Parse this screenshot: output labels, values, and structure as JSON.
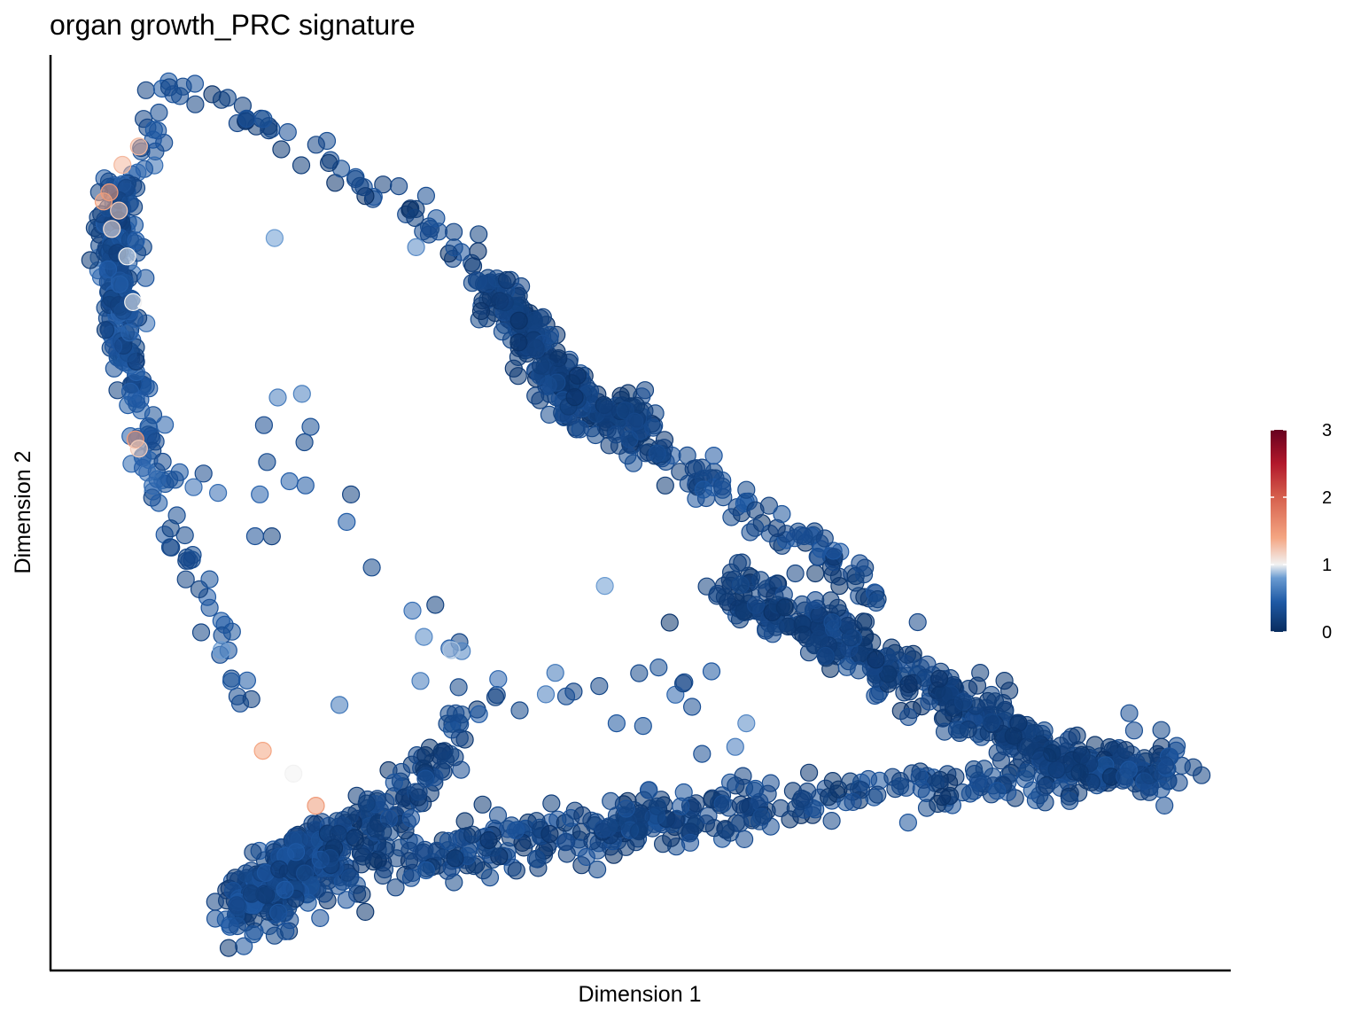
{
  "chart_data": {
    "type": "scatter",
    "title": "organ growth_PRC signature",
    "xlabel": "Dimension 1",
    "ylabel": "Dimension 2",
    "xlim": [
      0,
      100
    ],
    "ylim": [
      0,
      100
    ],
    "grid": false,
    "axis_ticks": false,
    "color_scale": {
      "name": "RdBu (reversed)",
      "range": [
        0,
        3
      ],
      "ticks": [
        "0",
        "1",
        "2",
        "3"
      ],
      "tick_values": [
        0,
        1,
        2,
        3
      ],
      "stops": [
        {
          "v": 0.0,
          "color": "#082c5e"
        },
        {
          "v": 0.45,
          "color": "#1f5aa6"
        },
        {
          "v": 0.8,
          "color": "#6a9bd1"
        },
        {
          "v": 1.0,
          "color": "#f2f2f2"
        },
        {
          "v": 1.4,
          "color": "#f4a582"
        },
        {
          "v": 2.0,
          "color": "#d6604d"
        },
        {
          "v": 2.5,
          "color": "#b2182b"
        },
        {
          "v": 3.0,
          "color": "#67001f"
        }
      ],
      "legend_position": "right"
    },
    "curves": [
      {
        "name": "top-left-arc",
        "path": [
          [
            10.5,
            96
          ],
          [
            9.5,
            94
          ],
          [
            8.5,
            91
          ],
          [
            7.2,
            87
          ],
          [
            6,
            82
          ],
          [
            5.5,
            77
          ],
          [
            5.8,
            72
          ],
          [
            6.5,
            67
          ],
          [
            7.5,
            62
          ],
          [
            8.5,
            57
          ],
          [
            9.5,
            52
          ]
        ],
        "n": 140,
        "spread": 1.2,
        "v": [
          0.2,
          0.6
        ]
      },
      {
        "name": "top-arc-dense",
        "path": [
          [
            6,
            86
          ],
          [
            5.5,
            80
          ],
          [
            5.8,
            74
          ],
          [
            6.5,
            68
          ]
        ],
        "n": 160,
        "spread": 1.4,
        "v": [
          0.15,
          0.5
        ]
      },
      {
        "name": "left-descending",
        "path": [
          [
            9.5,
            52
          ],
          [
            11,
            47
          ],
          [
            12.5,
            42
          ],
          [
            14,
            37
          ],
          [
            15.5,
            32
          ],
          [
            17,
            28
          ]
        ],
        "n": 30,
        "spread": 1.2,
        "v": [
          0.2,
          0.5
        ]
      },
      {
        "name": "upper-diagonal",
        "path": [
          [
            10.5,
            96
          ],
          [
            15,
            94
          ],
          [
            20,
            91
          ],
          [
            25,
            87
          ],
          [
            30,
            83
          ],
          [
            35,
            78
          ],
          [
            38,
            74
          ],
          [
            41,
            69
          ],
          [
            43,
            65
          ],
          [
            46,
            60
          ],
          [
            51,
            56
          ],
          [
            56,
            52
          ],
          [
            61,
            48
          ],
          [
            66,
            44
          ],
          [
            70,
            41
          ]
        ],
        "n": 120,
        "spread": 1.0,
        "v": [
          0.05,
          0.4
        ]
      },
      {
        "name": "upper-dense-cluster",
        "path": [
          [
            37,
            75
          ],
          [
            40,
            71
          ],
          [
            42,
            66
          ],
          [
            44,
            63
          ],
          [
            47,
            61
          ],
          [
            51,
            59
          ]
        ],
        "n": 260,
        "spread": 1.5,
        "v": [
          0.05,
          0.35
        ]
      },
      {
        "name": "upper-diagonal-tail",
        "path": [
          [
            51,
            58
          ],
          [
            54,
            55
          ],
          [
            58,
            52
          ],
          [
            62,
            49
          ],
          [
            66,
            46
          ],
          [
            70,
            42
          ]
        ],
        "n": 60,
        "spread": 1.2,
        "v": [
          0.1,
          0.45
        ]
      },
      {
        "name": "right-wedge-upper",
        "path": [
          [
            57,
            42
          ],
          [
            62,
            39
          ],
          [
            67,
            36
          ],
          [
            72,
            32
          ],
          [
            77,
            29
          ],
          [
            82,
            25
          ],
          [
            86,
            23
          ],
          [
            90,
            22
          ],
          [
            95,
            22
          ]
        ],
        "n": 420,
        "spread": 1.6,
        "v": [
          0.05,
          0.35
        ]
      },
      {
        "name": "right-wedge-lower",
        "path": [
          [
            58,
            17
          ],
          [
            63,
            18
          ],
          [
            68,
            19
          ],
          [
            73,
            20
          ],
          [
            78,
            20
          ],
          [
            83,
            21
          ],
          [
            88,
            21.5
          ],
          [
            93,
            22
          ],
          [
            96,
            22
          ]
        ],
        "n": 160,
        "spread": 1.3,
        "v": [
          0.05,
          0.4
        ]
      },
      {
        "name": "bottom-band",
        "path": [
          [
            16,
            7
          ],
          [
            20,
            9
          ],
          [
            25,
            11
          ],
          [
            30,
            12
          ],
          [
            35,
            13
          ],
          [
            40,
            14
          ],
          [
            45,
            15
          ],
          [
            50,
            16
          ],
          [
            55,
            17
          ],
          [
            60,
            18
          ]
        ],
        "n": 340,
        "spread": 1.6,
        "v": [
          0.05,
          0.4
        ]
      },
      {
        "name": "bottom-left-dense",
        "path": [
          [
            15.5,
            6
          ],
          [
            17,
            8
          ],
          [
            19,
            10
          ],
          [
            21,
            12
          ],
          [
            23,
            14
          ]
        ],
        "n": 220,
        "spread": 1.7,
        "v": [
          0.1,
          0.45
        ]
      },
      {
        "name": "bottom-upper-branch",
        "path": [
          [
            22,
            13
          ],
          [
            25,
            15
          ],
          [
            28,
            17
          ],
          [
            31,
            20
          ],
          [
            33,
            24
          ],
          [
            35,
            27
          ]
        ],
        "n": 110,
        "spread": 1.5,
        "v": [
          0.05,
          0.4
        ]
      },
      {
        "name": "middle-scatter",
        "path": [
          [
            14,
            50
          ],
          [
            18,
            55
          ],
          [
            22,
            60
          ],
          [
            28,
            44
          ],
          [
            34,
            36
          ],
          [
            40,
            32
          ],
          [
            45,
            29
          ],
          [
            52,
            27
          ],
          [
            56,
            33
          ]
        ],
        "n": 45,
        "spread": 4.0,
        "v": [
          0.2,
          0.7
        ]
      }
    ],
    "points": [
      {
        "x": 4.5,
        "y": 84,
        "v": 1.4
      },
      {
        "x": 5,
        "y": 85,
        "v": 1.5
      },
      {
        "x": 5.8,
        "y": 83,
        "v": 1.2
      },
      {
        "x": 5.2,
        "y": 81,
        "v": 1.1
      },
      {
        "x": 6.1,
        "y": 88,
        "v": 1.3
      },
      {
        "x": 7.5,
        "y": 90,
        "v": 1.3
      },
      {
        "x": 6.5,
        "y": 78,
        "v": 1.0
      },
      {
        "x": 7,
        "y": 73,
        "v": 1.0
      },
      {
        "x": 7.2,
        "y": 58,
        "v": 1.5
      },
      {
        "x": 7.5,
        "y": 57,
        "v": 1.2
      },
      {
        "x": 19,
        "y": 80,
        "v": 0.8
      },
      {
        "x": 31,
        "y": 79,
        "v": 0.7
      },
      {
        "x": 47,
        "y": 42,
        "v": 0.8
      },
      {
        "x": 59,
        "y": 27,
        "v": 0.7
      },
      {
        "x": 18,
        "y": 24,
        "v": 1.4
      },
      {
        "x": 20.6,
        "y": 21.5,
        "v": 1.0
      },
      {
        "x": 22.5,
        "y": 18,
        "v": 1.5
      },
      {
        "x": 14.5,
        "y": 35,
        "v": 0.8
      },
      {
        "x": 34,
        "y": 35,
        "v": 0.9
      },
      {
        "x": 24.5,
        "y": 29,
        "v": 0.6
      },
      {
        "x": 47.5,
        "y": 18.5,
        "v": 0.3
      },
      {
        "x": 48,
        "y": 27,
        "v": 0.4
      },
      {
        "x": 52.5,
        "y": 38,
        "v": 0.1
      }
    ]
  }
}
